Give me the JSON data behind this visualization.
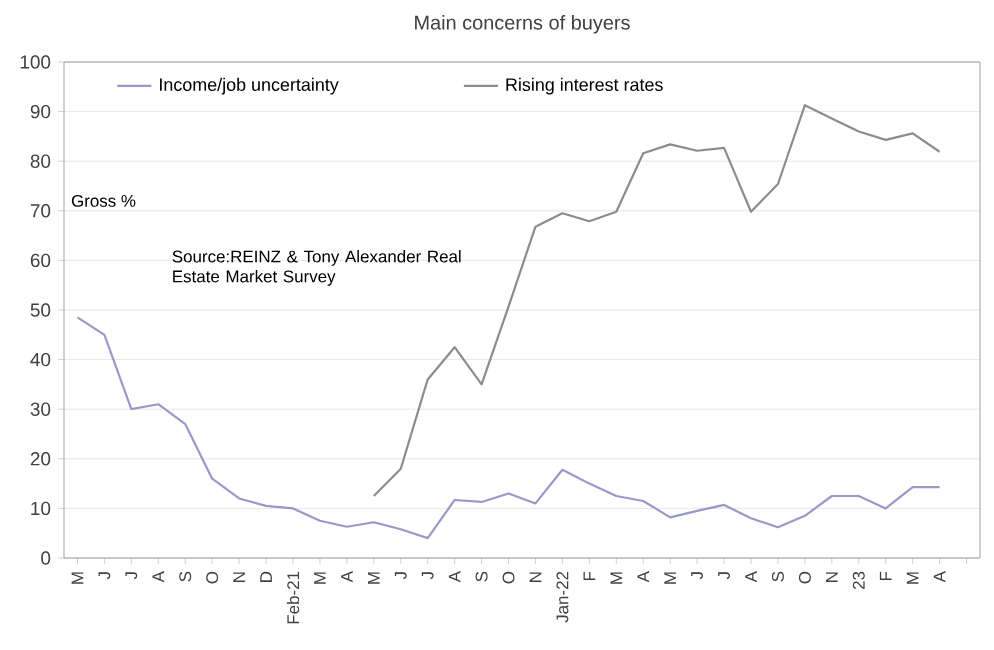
{
  "chart_data": {
    "type": "line",
    "title": "Main concerns of buyers",
    "ylabel": "Gross %",
    "categories": [
      "M",
      "J",
      "J",
      "A",
      "S",
      "O",
      "N",
      "D",
      "Feb-21",
      "M",
      "A",
      "M",
      "J",
      "J",
      "A",
      "S",
      "O",
      "N",
      "Jan-22",
      "F",
      "M",
      "A",
      "M",
      "J",
      "J",
      "A",
      "S",
      "O",
      "N",
      "23",
      "F",
      "M",
      "A",
      null
    ],
    "series": [
      {
        "name": "Income/job uncertainty",
        "color": "#9a98c8",
        "values": [
          48.5,
          45,
          30,
          31,
          27,
          16,
          12,
          10.5,
          10,
          7.5,
          6.3,
          7.2,
          5.8,
          4,
          11.7,
          11.3,
          13,
          11,
          17.8,
          15,
          12.5,
          11.5,
          8.2,
          9.5,
          10.7,
          8,
          6.2,
          8.5,
          12.5,
          12.5,
          10,
          14.3,
          14.3,
          null
        ]
      },
      {
        "name": "Rising interest rates",
        "color": "#8c8c8c",
        "values": [
          null,
          null,
          null,
          null,
          null,
          null,
          null,
          null,
          null,
          null,
          null,
          12.5,
          18,
          36,
          42.5,
          35,
          50.7,
          66.8,
          69.5,
          67.9,
          69.8,
          81.6,
          83.4,
          82.1,
          82.7,
          69.8,
          75.4,
          91.3,
          88.6,
          86,
          84.3,
          85.6,
          81.9,
          null
        ]
      }
    ],
    "ylim": [
      0,
      100
    ],
    "yticks": [
      0,
      10,
      20,
      30,
      40,
      50,
      60,
      70,
      80,
      90,
      100
    ],
    "grid": "y",
    "legend": "top",
    "annotations": [
      "Source:REINZ & Tony Alexander Real Estate Market Survey"
    ]
  }
}
